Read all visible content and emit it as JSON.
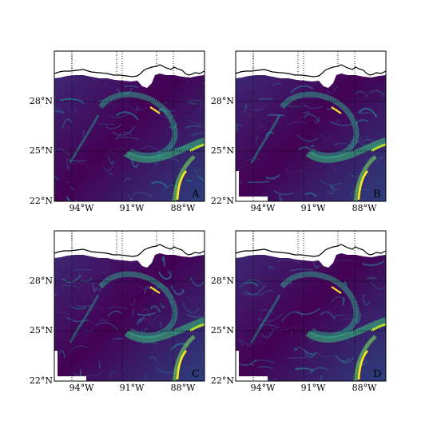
{
  "panels": [
    {
      "letter": "A"
    },
    {
      "letter": "B"
    },
    {
      "letter": "C"
    },
    {
      "letter": "D"
    }
  ],
  "latitude_labels": [
    "28°N",
    "25°N",
    "22°N"
  ],
  "longitude_labels": [
    "94°W",
    "91°W",
    "88°W"
  ],
  "colormap": {
    "name": "viridis",
    "low": "#440154",
    "mid": "#21918c",
    "high": "#fde725"
  },
  "colors": {
    "land": "#ffffff",
    "coastline": "#000000",
    "gridline": "#000000"
  }
}
